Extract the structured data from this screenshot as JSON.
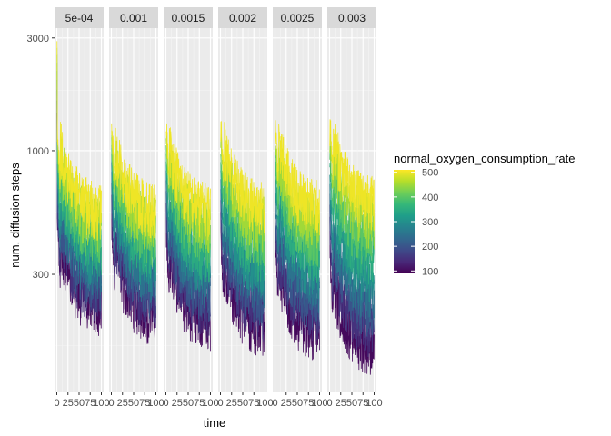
{
  "chart_data": {
    "type": "line",
    "facet_labels": [
      "5e-04",
      "0.001",
      "0.0015",
      "0.002",
      "0.0025",
      "0.003"
    ],
    "xlabel": "time",
    "ylabel": "num. diffusion steps",
    "y_scale": "log10",
    "xlim": [
      0,
      100
    ],
    "ylim": [
      95,
      3300
    ],
    "x_tick_labels": [
      "0",
      "25",
      "50",
      "75",
      "100"
    ],
    "x_tick_values": [
      0,
      25,
      50,
      75,
      100
    ],
    "y_tick_labels": [
      "300",
      "1000",
      "3000"
    ],
    "y_tick_values": [
      300,
      1000,
      3000
    ],
    "grid": true,
    "legend": {
      "title": "normal_oxygen_consumption_rate",
      "placement": "right",
      "range": [
        90,
        510
      ],
      "tick_labels": [
        "100",
        "200",
        "300",
        "400",
        "500"
      ],
      "tick_values": [
        100,
        200,
        300,
        400,
        500
      ],
      "colors": [
        "#440154",
        "#482878",
        "#3e4a89",
        "#31688e",
        "#26828e",
        "#1f9e89",
        "#35b779",
        "#6ece58",
        "#b5de2b",
        "#fde725"
      ]
    },
    "series_note_levels": [
      100,
      150,
      200,
      250,
      300,
      350,
      400,
      450,
      500
    ],
    "series": [
      {
        "facet": "5e-04",
        "start": 2900,
        "plateau_low": 220,
        "plateau_high": 560
      },
      {
        "facet": "0.001",
        "start": 1300,
        "plateau_low": 200,
        "plateau_high": 560
      },
      {
        "facet": "0.0015",
        "start": 1200,
        "plateau_low": 190,
        "plateau_high": 560
      },
      {
        "facet": "0.002",
        "start": 1100,
        "plateau_low": 180,
        "plateau_high": 570
      },
      {
        "facet": "0.0025",
        "start": 1100,
        "plateau_low": 170,
        "plateau_high": 580
      },
      {
        "facet": "0.003",
        "start": 1050,
        "plateau_low": 150,
        "plateau_high": 600
      }
    ]
  }
}
